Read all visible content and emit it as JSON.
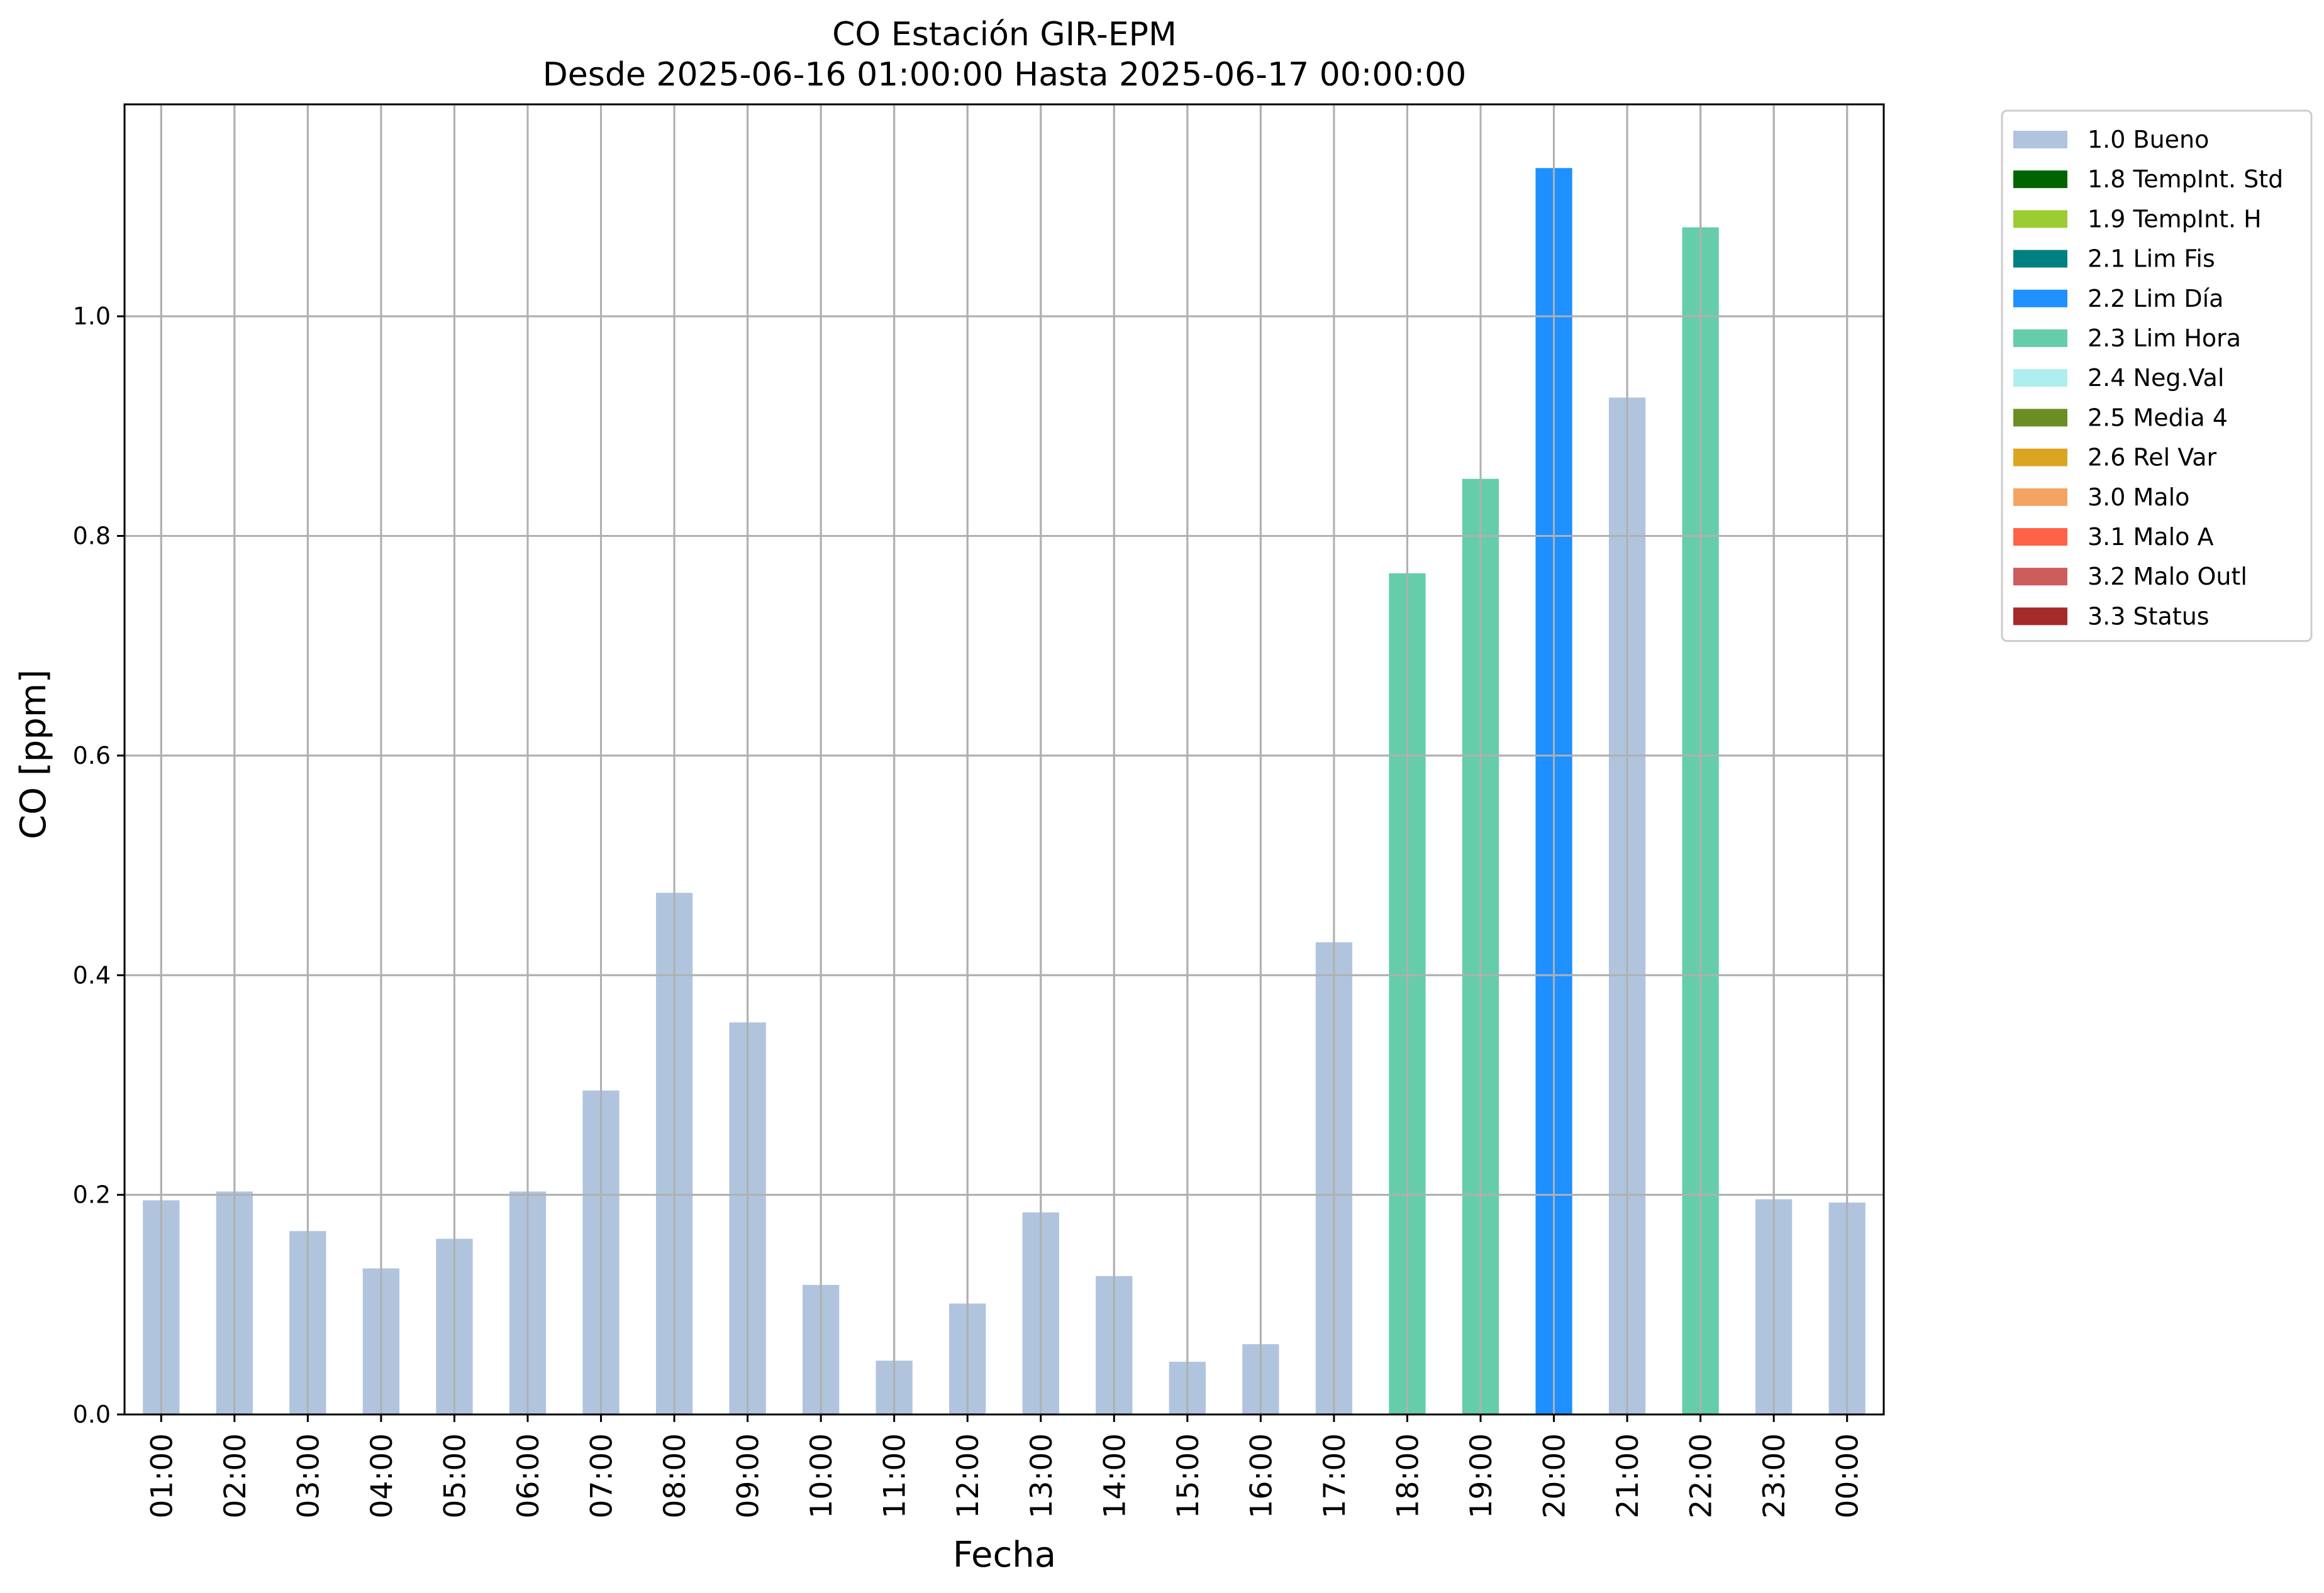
{
  "chart_data": {
    "type": "bar",
    "title": "CO Estación GIR-EPM",
    "subtitle": "Desde 2025-06-16 01:00:00 Hasta 2025-06-17 00:00:00",
    "xlabel": "Fecha",
    "ylabel": "CO [ppm]",
    "ylim": [
      0,
      1.193
    ],
    "yticks": [
      0.0,
      0.2,
      0.4,
      0.6,
      0.8,
      1.0
    ],
    "ytick_labels": [
      "0.0",
      "0.2",
      "0.4",
      "0.6",
      "0.8",
      "1.0"
    ],
    "grid": true,
    "legend_position": "outside-top-right",
    "categories": [
      "01:00",
      "02:00",
      "03:00",
      "04:00",
      "05:00",
      "06:00",
      "07:00",
      "08:00",
      "09:00",
      "10:00",
      "11:00",
      "12:00",
      "13:00",
      "14:00",
      "15:00",
      "16:00",
      "17:00",
      "18:00",
      "19:00",
      "20:00",
      "21:00",
      "22:00",
      "23:00",
      "00:00"
    ],
    "values": [
      0.195,
      0.203,
      0.167,
      0.133,
      0.16,
      0.203,
      0.295,
      0.475,
      0.357,
      0.118,
      0.049,
      0.101,
      0.184,
      0.126,
      0.048,
      0.064,
      0.43,
      0.766,
      0.852,
      1.135,
      0.926,
      1.081,
      0.196,
      0.193
    ],
    "flags": [
      "1.0 Bueno",
      "1.0 Bueno",
      "1.0 Bueno",
      "1.0 Bueno",
      "1.0 Bueno",
      "1.0 Bueno",
      "1.0 Bueno",
      "1.0 Bueno",
      "1.0 Bueno",
      "1.0 Bueno",
      "1.0 Bueno",
      "1.0 Bueno",
      "1.0 Bueno",
      "1.0 Bueno",
      "1.0 Bueno",
      "1.0 Bueno",
      "1.0 Bueno",
      "2.3 Lim Hora",
      "2.3 Lim Hora",
      "2.2 Lim Día",
      "1.0 Bueno",
      "2.3 Lim Hora",
      "1.0 Bueno",
      "1.0 Bueno"
    ],
    "legend": [
      {
        "label": "1.0 Bueno",
        "color": "#b0c4de"
      },
      {
        "label": "1.8 TempInt. Std",
        "color": "#006400"
      },
      {
        "label": "1.9 TempInt. H",
        "color": "#9acd32"
      },
      {
        "label": "2.1 Lim Fis",
        "color": "#008080"
      },
      {
        "label": "2.2 Lim Día",
        "color": "#1e90ff"
      },
      {
        "label": "2.3 Lim Hora",
        "color": "#66cdaa"
      },
      {
        "label": "2.4 Neg.Val",
        "color": "#afeeee"
      },
      {
        "label": "2.5 Media 4",
        "color": "#6b8e23"
      },
      {
        "label": "2.6 Rel Var",
        "color": "#daa520"
      },
      {
        "label": "3.0 Malo",
        "color": "#f4a460"
      },
      {
        "label": "3.1 Malo A",
        "color": "#ff6347"
      },
      {
        "label": "3.2 Malo Outl",
        "color": "#cd5c5c"
      },
      {
        "label": "3.3 Status",
        "color": "#a52a2a"
      }
    ]
  }
}
